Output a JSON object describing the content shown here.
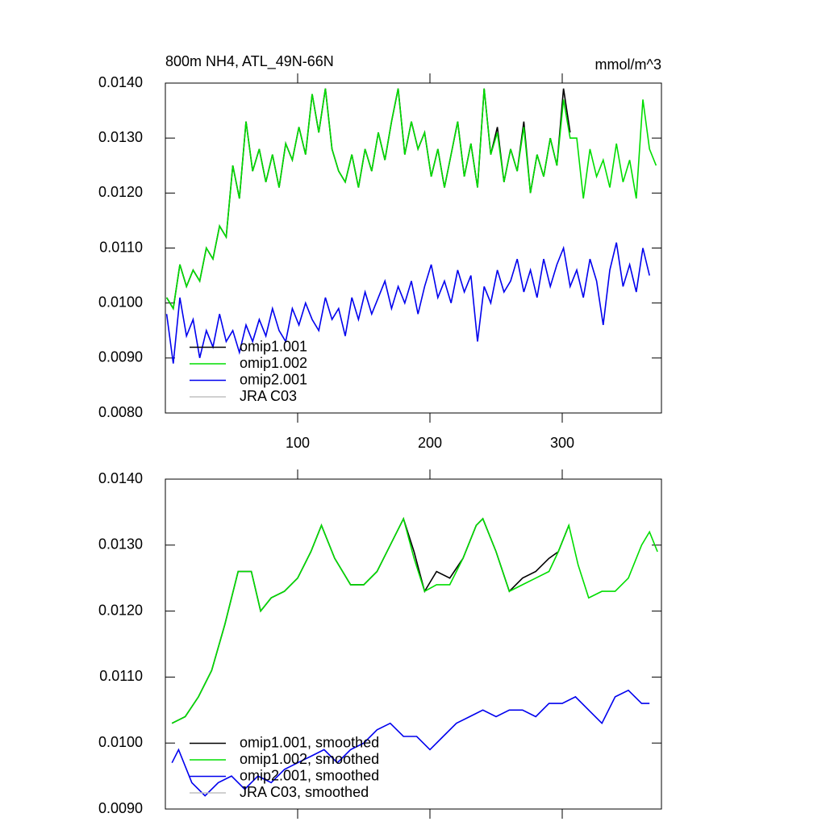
{
  "chart_data": [
    {
      "type": "line",
      "title": "800m NH4, ATL_49N-66N",
      "units": "mmol/m^3",
      "xlim": [
        0,
        375
      ],
      "xticks": [
        100,
        200,
        300
      ],
      "xtick_labels": true,
      "ylim": [
        0.008,
        0.014
      ],
      "yticks": [
        {
          "value": 0.008,
          "label": "0.0080"
        },
        {
          "value": 0.009,
          "label": "0.0090"
        },
        {
          "value": 0.01,
          "label": "0.0100"
        },
        {
          "value": 0.011,
          "label": "0.0110"
        },
        {
          "value": 0.012,
          "label": "0.0120"
        },
        {
          "value": 0.013,
          "label": "0.0130"
        },
        {
          "value": 0.014,
          "label": "0.0140"
        }
      ],
      "legend": "lower left",
      "series": [
        {
          "name": "omip1.001",
          "color": "#000000",
          "x": [
            1,
            6,
            11,
            16,
            21,
            26,
            31,
            36,
            41,
            46,
            51,
            56,
            61,
            66,
            71,
            76,
            81,
            86,
            91,
            96,
            101,
            106,
            111,
            116,
            121,
            126,
            131,
            136,
            141,
            146,
            151,
            156,
            161,
            166,
            171,
            176,
            181,
            186,
            191,
            196,
            201,
            206,
            211,
            216,
            221,
            226,
            231,
            236,
            241,
            246,
            251,
            256,
            261,
            266,
            271,
            276,
            281,
            286,
            291,
            296,
            301,
            306
          ],
          "values": [
            0.0101,
            0.0099,
            0.0107,
            0.0103,
            0.0106,
            0.0104,
            0.011,
            0.0108,
            0.0114,
            0.0112,
            0.0125,
            0.0119,
            0.0133,
            0.0124,
            0.0128,
            0.0122,
            0.0127,
            0.0121,
            0.0129,
            0.0126,
            0.0132,
            0.0127,
            0.0138,
            0.0131,
            0.0139,
            0.0128,
            0.0124,
            0.0122,
            0.0127,
            0.0121,
            0.0128,
            0.0124,
            0.0131,
            0.0126,
            0.0133,
            0.0139,
            0.0127,
            0.0133,
            0.0128,
            0.0131,
            0.0123,
            0.0128,
            0.0121,
            0.0127,
            0.0133,
            0.0123,
            0.0129,
            0.0121,
            0.0139,
            0.0127,
            0.0132,
            0.0122,
            0.0128,
            0.0124,
            0.0133,
            0.012,
            0.0127,
            0.0123,
            0.013,
            0.0125,
            0.0139,
            0.0131
          ]
        },
        {
          "name": "omip1.002",
          "color": "#00dd00",
          "x": [
            1,
            6,
            11,
            16,
            21,
            26,
            31,
            36,
            41,
            46,
            51,
            56,
            61,
            66,
            71,
            76,
            81,
            86,
            91,
            96,
            101,
            106,
            111,
            116,
            121,
            126,
            131,
            136,
            141,
            146,
            151,
            156,
            161,
            166,
            171,
            176,
            181,
            186,
            191,
            196,
            201,
            206,
            211,
            216,
            221,
            226,
            231,
            236,
            241,
            246,
            251,
            256,
            261,
            266,
            271,
            276,
            281,
            286,
            291,
            296,
            301,
            306,
            311,
            316,
            321,
            326,
            331,
            336,
            341,
            346,
            351,
            356,
            361,
            366,
            371
          ],
          "values": [
            0.0101,
            0.0099,
            0.0107,
            0.0103,
            0.0106,
            0.0104,
            0.011,
            0.0108,
            0.0114,
            0.0112,
            0.0125,
            0.0119,
            0.0133,
            0.0124,
            0.0128,
            0.0122,
            0.0127,
            0.0121,
            0.0129,
            0.0126,
            0.0132,
            0.0127,
            0.0138,
            0.0131,
            0.0139,
            0.0128,
            0.0124,
            0.0122,
            0.0127,
            0.0121,
            0.0128,
            0.0124,
            0.0131,
            0.0126,
            0.0133,
            0.0139,
            0.0127,
            0.0133,
            0.0128,
            0.0131,
            0.0123,
            0.0128,
            0.0121,
            0.0127,
            0.0133,
            0.0123,
            0.0129,
            0.0121,
            0.0139,
            0.0127,
            0.0131,
            0.0122,
            0.0128,
            0.0124,
            0.0132,
            0.012,
            0.0127,
            0.0123,
            0.013,
            0.0125,
            0.0137,
            0.013,
            0.013,
            0.0119,
            0.0128,
            0.0123,
            0.0126,
            0.0121,
            0.0129,
            0.0122,
            0.0126,
            0.0119,
            0.0137,
            0.0128,
            0.0125
          ]
        },
        {
          "name": "omip2.001",
          "color": "#0000ee",
          "x": [
            1,
            6,
            11,
            16,
            21,
            26,
            31,
            36,
            41,
            46,
            51,
            56,
            61,
            66,
            71,
            76,
            81,
            86,
            91,
            96,
            101,
            106,
            111,
            116,
            121,
            126,
            131,
            136,
            141,
            146,
            151,
            156,
            161,
            166,
            171,
            176,
            181,
            186,
            191,
            196,
            201,
            206,
            211,
            216,
            221,
            226,
            231,
            236,
            241,
            246,
            251,
            256,
            261,
            266,
            271,
            276,
            281,
            286,
            291,
            296,
            301,
            306,
            311,
            316,
            321,
            326,
            331,
            336,
            341,
            346,
            351,
            356,
            361,
            366
          ],
          "values": [
            0.0098,
            0.0089,
            0.0101,
            0.0094,
            0.0097,
            0.009,
            0.0095,
            0.0092,
            0.0098,
            0.0093,
            0.0095,
            0.0091,
            0.0096,
            0.0093,
            0.0097,
            0.0094,
            0.0099,
            0.0095,
            0.0093,
            0.0099,
            0.0096,
            0.01,
            0.0097,
            0.0095,
            0.0101,
            0.0097,
            0.0099,
            0.0094,
            0.0101,
            0.0097,
            0.0102,
            0.0098,
            0.0101,
            0.0104,
            0.0099,
            0.0103,
            0.01,
            0.0104,
            0.0098,
            0.0103,
            0.0107,
            0.0101,
            0.0104,
            0.01,
            0.0106,
            0.0102,
            0.0105,
            0.0093,
            0.0103,
            0.01,
            0.0106,
            0.0102,
            0.0104,
            0.0108,
            0.0102,
            0.0106,
            0.0101,
            0.0108,
            0.0103,
            0.0107,
            0.011,
            0.0103,
            0.0106,
            0.0101,
            0.0108,
            0.0104,
            0.0096,
            0.0106,
            0.0111,
            0.0103,
            0.0107,
            0.0102,
            0.011,
            0.0105
          ]
        },
        {
          "name": "JRA C03",
          "color": "#c0c0c0",
          "x": [],
          "values": []
        }
      ]
    },
    {
      "type": "line",
      "xlim": [
        0,
        375
      ],
      "xticks": [
        100,
        200,
        300
      ],
      "xtick_labels": false,
      "ylim": [
        0.009,
        0.014
      ],
      "yticks": [
        {
          "value": 0.009,
          "label": "0.0090"
        },
        {
          "value": 0.01,
          "label": "0.0100"
        },
        {
          "value": 0.011,
          "label": "0.0110"
        },
        {
          "value": 0.012,
          "label": "0.0120"
        },
        {
          "value": 0.013,
          "label": "0.0130"
        },
        {
          "value": 0.014,
          "label": "0.0140"
        }
      ],
      "legend": "lower left",
      "series": [
        {
          "name": "omip1.001, smoothed",
          "color": "#000000",
          "x": [
            5,
            15,
            25,
            35,
            45,
            55,
            65,
            72,
            80,
            90,
            100,
            110,
            118,
            128,
            140,
            150,
            160,
            170,
            180,
            188,
            196,
            205,
            215,
            225,
            235,
            240,
            250,
            260,
            270,
            280,
            290,
            297,
            305
          ],
          "values": [
            0.0103,
            0.0104,
            0.0107,
            0.0111,
            0.0118,
            0.0126,
            0.0126,
            0.012,
            0.0122,
            0.0123,
            0.0125,
            0.0129,
            0.0133,
            0.0128,
            0.0124,
            0.0124,
            0.0126,
            0.013,
            0.0134,
            0.0129,
            0.0123,
            0.0126,
            0.0125,
            0.0128,
            0.0133,
            0.0134,
            0.0129,
            0.0123,
            0.0125,
            0.0126,
            0.0128,
            0.0129,
            0.0133
          ]
        },
        {
          "name": "omip1.002, smoothed",
          "color": "#00dd00",
          "x": [
            5,
            15,
            25,
            35,
            45,
            55,
            65,
            72,
            80,
            90,
            100,
            110,
            118,
            128,
            140,
            150,
            160,
            170,
            180,
            188,
            196,
            205,
            215,
            225,
            235,
            240,
            250,
            260,
            270,
            280,
            290,
            297,
            305,
            312,
            320,
            330,
            340,
            350,
            360,
            366,
            372
          ],
          "values": [
            0.0103,
            0.0104,
            0.0107,
            0.0111,
            0.0118,
            0.0126,
            0.0126,
            0.012,
            0.0122,
            0.0123,
            0.0125,
            0.0129,
            0.0133,
            0.0128,
            0.0124,
            0.0124,
            0.0126,
            0.013,
            0.0134,
            0.0128,
            0.0123,
            0.0124,
            0.0124,
            0.0128,
            0.0133,
            0.0134,
            0.0129,
            0.0123,
            0.0124,
            0.0125,
            0.0126,
            0.0129,
            0.0133,
            0.0127,
            0.0122,
            0.0123,
            0.0123,
            0.0125,
            0.013,
            0.0132,
            0.0129
          ]
        },
        {
          "name": "omip2.001, smoothed",
          "color": "#0000ee",
          "x": [
            5,
            10,
            20,
            30,
            40,
            50,
            60,
            70,
            80,
            90,
            100,
            110,
            120,
            130,
            140,
            150,
            160,
            170,
            180,
            190,
            200,
            210,
            220,
            230,
            240,
            250,
            260,
            270,
            280,
            290,
            300,
            310,
            320,
            330,
            340,
            350,
            360,
            366
          ],
          "values": [
            0.0097,
            0.0099,
            0.0094,
            0.0092,
            0.0094,
            0.0095,
            0.0093,
            0.0095,
            0.0094,
            0.0096,
            0.0097,
            0.0098,
            0.0099,
            0.0097,
            0.0099,
            0.01,
            0.0102,
            0.0103,
            0.0101,
            0.0101,
            0.0099,
            0.0101,
            0.0103,
            0.0104,
            0.0105,
            0.0104,
            0.0105,
            0.0105,
            0.0104,
            0.0106,
            0.0106,
            0.0107,
            0.0105,
            0.0103,
            0.0107,
            0.0108,
            0.0106,
            0.0106
          ]
        },
        {
          "name": "JRA C03, smoothed",
          "color": "#c0c0c0",
          "x": [],
          "values": []
        }
      ]
    }
  ]
}
